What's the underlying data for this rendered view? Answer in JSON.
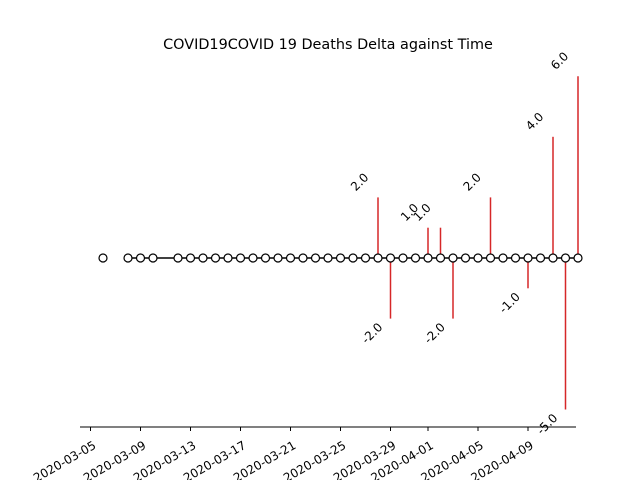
{
  "chart_data": {
    "type": "stem",
    "title": "COVID19COVID 19 Deaths Delta against Time",
    "xlabel": "",
    "ylabel": "",
    "x_range": [
      "2020-03-04",
      "2020-04-11"
    ],
    "y_range": [
      -5.5,
      6.5
    ],
    "x_ticks": [
      "2020-03-05",
      "2020-03-09",
      "2020-03-13",
      "2020-03-17",
      "2020-03-21",
      "2020-03-25",
      "2020-03-29",
      "2020-04-01",
      "2020-04-05",
      "2020-04-09"
    ],
    "grid": false,
    "colors": {
      "stem": "#d62728",
      "baseline": "#000000",
      "marker_fill": "#ffffff",
      "marker_edge": "#000000"
    },
    "dates": [
      "2020-03-06",
      "2020-03-08",
      "2020-03-09",
      "2020-03-10",
      "2020-03-12",
      "2020-03-13",
      "2020-03-14",
      "2020-03-15",
      "2020-03-16",
      "2020-03-17",
      "2020-03-18",
      "2020-03-19",
      "2020-03-20",
      "2020-03-21",
      "2020-03-22",
      "2020-03-23",
      "2020-03-24",
      "2020-03-25",
      "2020-03-26",
      "2020-03-27",
      "2020-03-28",
      "2020-03-29",
      "2020-03-30",
      "2020-03-31",
      "2020-04-01",
      "2020-04-02",
      "2020-04-03",
      "2020-04-04",
      "2020-04-05",
      "2020-04-06",
      "2020-04-07",
      "2020-04-08",
      "2020-04-09",
      "2020-04-10",
      "2020-04-11",
      "2020-04-12",
      "2020-04-13"
    ],
    "values": [
      0,
      0,
      0,
      0,
      0,
      0,
      0,
      0,
      0,
      0,
      0,
      0,
      0,
      0,
      0,
      0,
      0,
      0,
      0,
      0,
      2.0,
      -2.0,
      0,
      0,
      1.0,
      1.0,
      -2.0,
      0,
      0,
      2.0,
      0,
      0,
      -1.0,
      0,
      4.0,
      -5.0,
      6.0
    ]
  }
}
